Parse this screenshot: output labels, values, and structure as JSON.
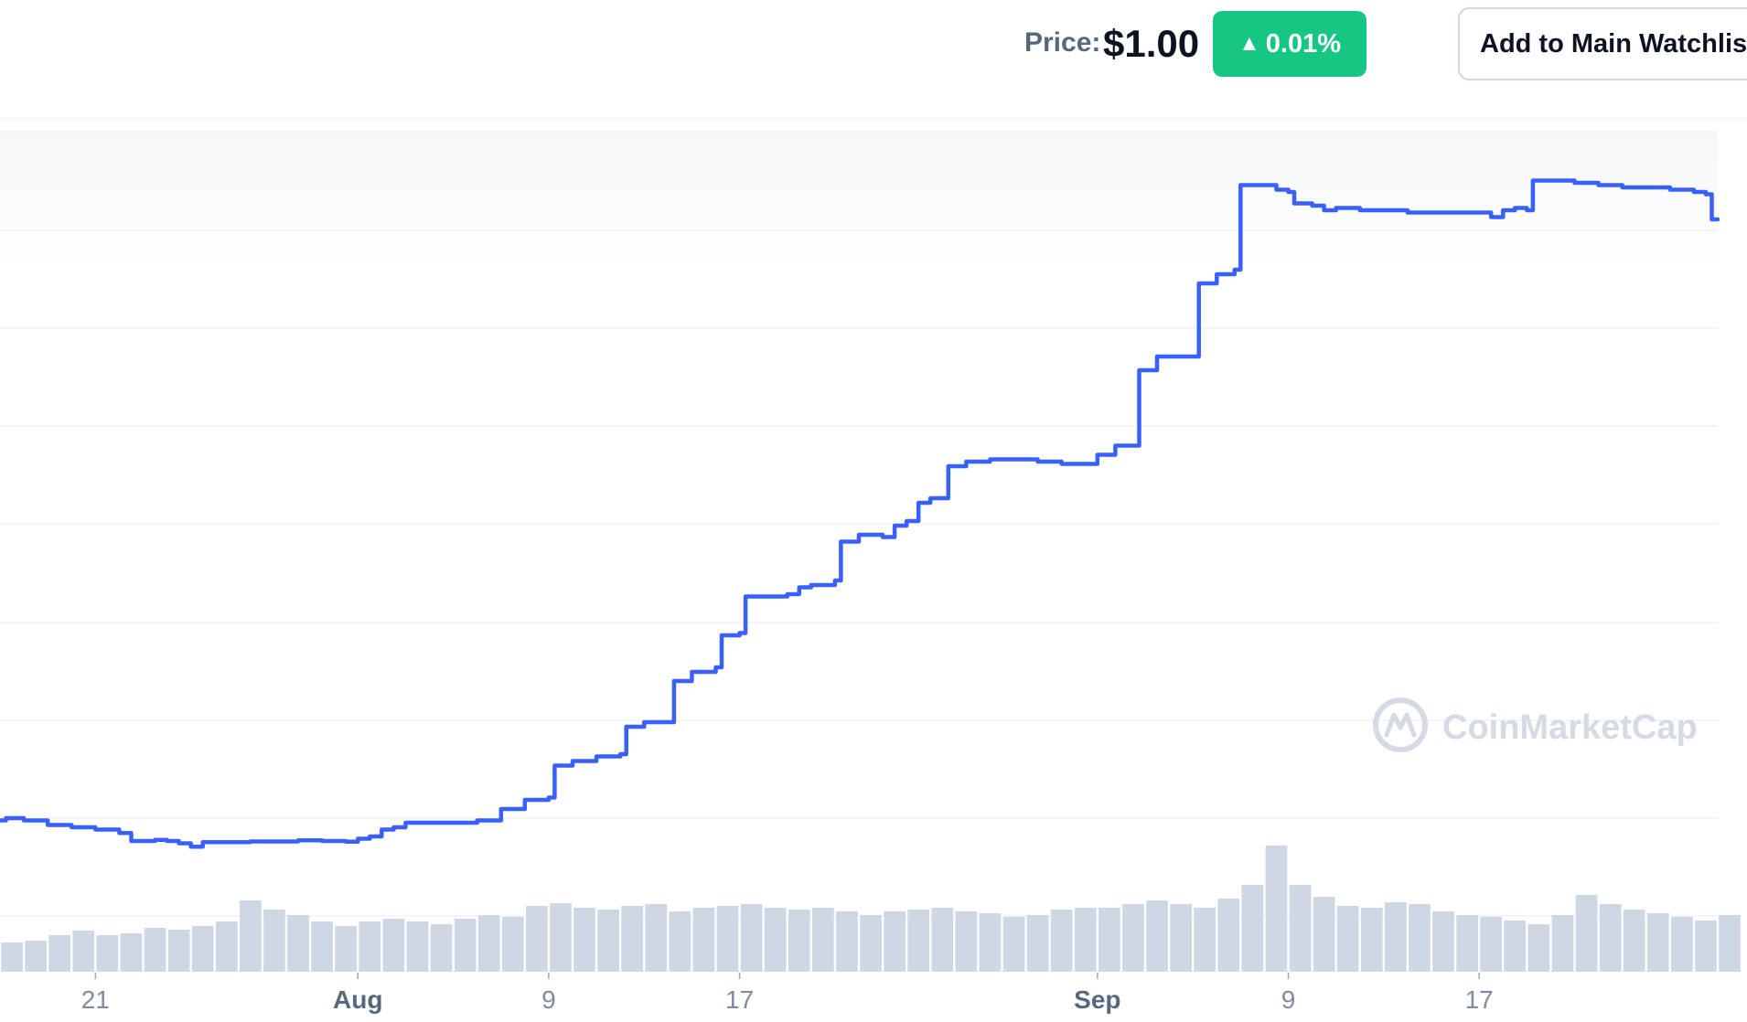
{
  "header": {
    "price_label": "Price:",
    "price_value": "$1.00",
    "change_value": "0.01%",
    "change_direction": "up",
    "watchlist_label": "Add to Main Watchlist"
  },
  "watermark": {
    "text": "CoinMarketCap"
  },
  "colors": {
    "line": "#3861fb",
    "volume": "#cfd6e4",
    "positive": "#16c784",
    "grid": "#eff2f5",
    "watermark": "#d5dbe5"
  },
  "chart_data": {
    "type": "line",
    "xlabel": "",
    "ylabel": "",
    "x_start": "2024-07-17",
    "x_end": "2024-09-27",
    "xtick_labels": [
      {
        "date": "2024-07-21",
        "label": "21",
        "bold": false
      },
      {
        "date": "2024-08-01",
        "label": "Aug",
        "bold": true
      },
      {
        "date": "2024-08-09",
        "label": "9",
        "bold": false
      },
      {
        "date": "2024-08-17",
        "label": "17",
        "bold": false
      },
      {
        "date": "2024-09-01",
        "label": "Sep",
        "bold": true
      },
      {
        "date": "2024-09-09",
        "label": "9",
        "bold": false
      },
      {
        "date": "2024-09-17",
        "label": "17",
        "bold": false
      }
    ],
    "y_tick_labels_visible": false,
    "grid": true,
    "series": [
      {
        "points": [
          [
            "2024-07-17T00:00",
            0.09
          ],
          [
            "2024-07-17T06:00",
            0.1
          ],
          [
            "2024-07-18T00:00",
            0.09
          ],
          [
            "2024-07-19T00:00",
            0.07
          ],
          [
            "2024-07-20T00:00",
            0.06
          ],
          [
            "2024-07-21T00:00",
            0.05
          ],
          [
            "2024-07-22T00:00",
            0.035
          ],
          [
            "2024-07-22T12:00",
            0.0
          ],
          [
            "2024-07-23T12:00",
            0.005
          ],
          [
            "2024-07-24T00:00",
            0.0
          ],
          [
            "2024-07-24T12:00",
            -0.01
          ],
          [
            "2024-07-25T00:00",
            -0.025
          ],
          [
            "2024-07-25T12:00",
            -0.005
          ],
          [
            "2024-07-26T12:00",
            -0.005
          ],
          [
            "2024-07-27T12:00",
            -0.002
          ],
          [
            "2024-07-28T12:00",
            -0.002
          ],
          [
            "2024-07-29T12:00",
            0.003
          ],
          [
            "2024-07-30T12:00",
            0.0
          ],
          [
            "2024-07-31T12:00",
            -0.003
          ],
          [
            "2024-08-01T00:00",
            0.01
          ],
          [
            "2024-08-01T12:00",
            0.02
          ],
          [
            "2024-08-02T00:00",
            0.05
          ],
          [
            "2024-08-02T12:00",
            0.06
          ],
          [
            "2024-08-03T00:00",
            0.08
          ],
          [
            "2024-08-04T00:00",
            0.08
          ],
          [
            "2024-08-05T00:00",
            0.08
          ],
          [
            "2024-08-06T00:00",
            0.09
          ],
          [
            "2024-08-07T00:00",
            0.14
          ],
          [
            "2024-08-08T00:00",
            0.18
          ],
          [
            "2024-08-09T00:00",
            0.19
          ],
          [
            "2024-08-09T06:00",
            0.33
          ],
          [
            "2024-08-10T00:00",
            0.35
          ],
          [
            "2024-08-11T00:00",
            0.37
          ],
          [
            "2024-08-12T00:00",
            0.38
          ],
          [
            "2024-08-12T06:00",
            0.5
          ],
          [
            "2024-08-13T00:00",
            0.52
          ],
          [
            "2024-08-14T00:00",
            0.52
          ],
          [
            "2024-08-14T06:00",
            0.7
          ],
          [
            "2024-08-15T00:00",
            0.74
          ],
          [
            "2024-08-16T00:00",
            0.76
          ],
          [
            "2024-08-16T06:00",
            0.9
          ],
          [
            "2024-08-17T00:00",
            0.91
          ],
          [
            "2024-08-17T06:00",
            1.07
          ],
          [
            "2024-08-18T00:00",
            1.07
          ],
          [
            "2024-08-19T00:00",
            1.08
          ],
          [
            "2024-08-19T12:00",
            1.11
          ],
          [
            "2024-08-20T00:00",
            1.12
          ],
          [
            "2024-08-21T00:00",
            1.14
          ],
          [
            "2024-08-21T06:00",
            1.31
          ],
          [
            "2024-08-22T00:00",
            1.34
          ],
          [
            "2024-08-23T00:00",
            1.33
          ],
          [
            "2024-08-23T12:00",
            1.38
          ],
          [
            "2024-08-24T00:00",
            1.4
          ],
          [
            "2024-08-24T12:00",
            1.48
          ],
          [
            "2024-08-25T00:00",
            1.5
          ],
          [
            "2024-08-25T12:00",
            1.5
          ],
          [
            "2024-08-25T18:00",
            1.64
          ],
          [
            "2024-08-26T12:00",
            1.66
          ],
          [
            "2024-08-27T12:00",
            1.67
          ],
          [
            "2024-08-28T12:00",
            1.67
          ],
          [
            "2024-08-29T12:00",
            1.66
          ],
          [
            "2024-08-30T12:00",
            1.65
          ],
          [
            "2024-08-31T12:00",
            1.65
          ],
          [
            "2024-09-01T00:00",
            1.69
          ],
          [
            "2024-09-01T18:00",
            1.73
          ],
          [
            "2024-09-02T12:00",
            1.73
          ],
          [
            "2024-09-02T18:00",
            2.06
          ],
          [
            "2024-09-03T12:00",
            2.12
          ],
          [
            "2024-09-04T12:00",
            2.12
          ],
          [
            "2024-09-05T00:00",
            2.12
          ],
          [
            "2024-09-05T06:00",
            2.44
          ],
          [
            "2024-09-06T00:00",
            2.48
          ],
          [
            "2024-09-06T18:00",
            2.5
          ],
          [
            "2024-09-07T00:00",
            2.87
          ],
          [
            "2024-09-08T00:00",
            2.87
          ],
          [
            "2024-09-08T12:00",
            2.85
          ],
          [
            "2024-09-09T00:00",
            2.84
          ],
          [
            "2024-09-09T06:00",
            2.79
          ],
          [
            "2024-09-10T00:00",
            2.78
          ],
          [
            "2024-09-10T12:00",
            2.76
          ],
          [
            "2024-09-11T00:00",
            2.77
          ],
          [
            "2024-09-12T00:00",
            2.76
          ],
          [
            "2024-09-13T00:00",
            2.76
          ],
          [
            "2024-09-14T00:00",
            2.75
          ],
          [
            "2024-09-15T00:00",
            2.75
          ],
          [
            "2024-09-16T00:00",
            2.75
          ],
          [
            "2024-09-17T00:00",
            2.75
          ],
          [
            "2024-09-17T12:00",
            2.73
          ],
          [
            "2024-09-18T00:00",
            2.76
          ],
          [
            "2024-09-18T12:00",
            2.77
          ],
          [
            "2024-09-19T00:00",
            2.76
          ],
          [
            "2024-09-19T06:00",
            2.89
          ],
          [
            "2024-09-20T00:00",
            2.89
          ],
          [
            "2024-09-21T00:00",
            2.88
          ],
          [
            "2024-09-22T00:00",
            2.87
          ],
          [
            "2024-09-23T00:00",
            2.86
          ],
          [
            "2024-09-24T00:00",
            2.86
          ],
          [
            "2024-09-25T00:00",
            2.85
          ],
          [
            "2024-09-26T00:00",
            2.84
          ],
          [
            "2024-09-26T12:00",
            2.83
          ],
          [
            "2024-09-26T18:00",
            2.72
          ],
          [
            "2024-09-27T00:00",
            2.72
          ]
        ]
      },
      {
        "kind": "volume",
        "points": [
          [
            "2024-07-17",
            0.32
          ],
          [
            "2024-07-18",
            0.34
          ],
          [
            "2024-07-19",
            0.4
          ],
          [
            "2024-07-20",
            0.45
          ],
          [
            "2024-07-21",
            0.4
          ],
          [
            "2024-07-22",
            0.42
          ],
          [
            "2024-07-23",
            0.48
          ],
          [
            "2024-07-24",
            0.46
          ],
          [
            "2024-07-25",
            0.5
          ],
          [
            "2024-07-26",
            0.55
          ],
          [
            "2024-07-27",
            0.78
          ],
          [
            "2024-07-28",
            0.68
          ],
          [
            "2024-07-29",
            0.62
          ],
          [
            "2024-07-30",
            0.55
          ],
          [
            "2024-07-31",
            0.5
          ],
          [
            "2024-08-01",
            0.55
          ],
          [
            "2024-08-02",
            0.58
          ],
          [
            "2024-08-03",
            0.55
          ],
          [
            "2024-08-04",
            0.52
          ],
          [
            "2024-08-05",
            0.58
          ],
          [
            "2024-08-06",
            0.62
          ],
          [
            "2024-08-07",
            0.6
          ],
          [
            "2024-08-08",
            0.72
          ],
          [
            "2024-08-09",
            0.75
          ],
          [
            "2024-08-10",
            0.7
          ],
          [
            "2024-08-11",
            0.68
          ],
          [
            "2024-08-12",
            0.72
          ],
          [
            "2024-08-13",
            0.74
          ],
          [
            "2024-08-14",
            0.66
          ],
          [
            "2024-08-15",
            0.7
          ],
          [
            "2024-08-16",
            0.72
          ],
          [
            "2024-08-17",
            0.74
          ],
          [
            "2024-08-18",
            0.7
          ],
          [
            "2024-08-19",
            0.68
          ],
          [
            "2024-08-20",
            0.7
          ],
          [
            "2024-08-21",
            0.66
          ],
          [
            "2024-08-22",
            0.62
          ],
          [
            "2024-08-23",
            0.66
          ],
          [
            "2024-08-24",
            0.68
          ],
          [
            "2024-08-25",
            0.7
          ],
          [
            "2024-08-26",
            0.66
          ],
          [
            "2024-08-27",
            0.64
          ],
          [
            "2024-08-28",
            0.6
          ],
          [
            "2024-08-29",
            0.62
          ],
          [
            "2024-08-30",
            0.68
          ],
          [
            "2024-08-31",
            0.7
          ],
          [
            "2024-09-01",
            0.7
          ],
          [
            "2024-09-02",
            0.74
          ],
          [
            "2024-09-03",
            0.78
          ],
          [
            "2024-09-04",
            0.74
          ],
          [
            "2024-09-05",
            0.7
          ],
          [
            "2024-09-06",
            0.8
          ],
          [
            "2024-09-07",
            0.95
          ],
          [
            "2024-09-08",
            1.38
          ],
          [
            "2024-09-09",
            0.95
          ],
          [
            "2024-09-10",
            0.82
          ],
          [
            "2024-09-11",
            0.72
          ],
          [
            "2024-09-12",
            0.7
          ],
          [
            "2024-09-13",
            0.76
          ],
          [
            "2024-09-14",
            0.74
          ],
          [
            "2024-09-15",
            0.66
          ],
          [
            "2024-09-16",
            0.62
          ],
          [
            "2024-09-17",
            0.6
          ],
          [
            "2024-09-18",
            0.56
          ],
          [
            "2024-09-19",
            0.52
          ],
          [
            "2024-09-20",
            0.62
          ],
          [
            "2024-09-21",
            0.84
          ],
          [
            "2024-09-22",
            0.74
          ],
          [
            "2024-09-23",
            0.68
          ],
          [
            "2024-09-24",
            0.64
          ],
          [
            "2024-09-25",
            0.6
          ],
          [
            "2024-09-26",
            0.56
          ],
          [
            "2024-09-27",
            0.62
          ]
        ]
      }
    ]
  }
}
